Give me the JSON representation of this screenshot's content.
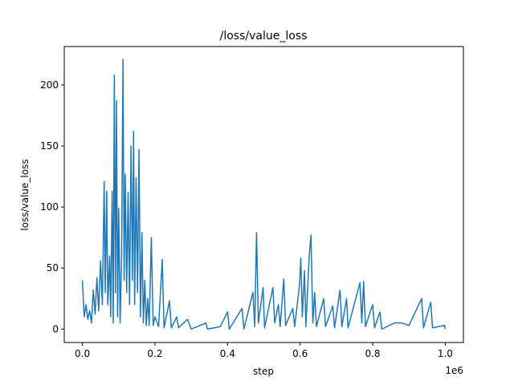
{
  "chart_data": {
    "type": "line",
    "title": "/loss/value_loss",
    "x_label": "step",
    "y_label": "loss/value_loss",
    "x_offset_label": "1e6",
    "xlim": [
      -50000,
      1050000
    ],
    "ylim": [
      -11,
      231.5
    ],
    "xticks": [
      {
        "value": 0,
        "label": "0.0"
      },
      {
        "value": 200000,
        "label": "0.2"
      },
      {
        "value": 400000,
        "label": "0.4"
      },
      {
        "value": 600000,
        "label": "0.6"
      },
      {
        "value": 800000,
        "label": "0.8"
      },
      {
        "value": 1000000,
        "label": "1.0"
      }
    ],
    "yticks": [
      0,
      50,
      100,
      150,
      200
    ],
    "x": [
      0,
      5000,
      10000,
      15000,
      20000,
      25000,
      30000,
      35000,
      40000,
      45000,
      50000,
      55000,
      60000,
      63000,
      67000,
      70000,
      75000,
      78000,
      82000,
      85000,
      88000,
      91000,
      94000,
      97000,
      100000,
      104000,
      108000,
      112000,
      115000,
      118000,
      122000,
      126000,
      130000,
      134000,
      138000,
      141000,
      144000,
      148000,
      152000,
      156000,
      160000,
      164000,
      168000,
      172000,
      176000,
      180000,
      184000,
      190000,
      195000,
      200000,
      210000,
      220000,
      225000,
      240000,
      245000,
      260000,
      265000,
      290000,
      300000,
      340000,
      345000,
      380000,
      400000,
      405000,
      440000,
      445000,
      470000,
      475000,
      480000,
      485000,
      498000,
      502000,
      525000,
      530000,
      540000,
      545000,
      555000,
      560000,
      580000,
      585000,
      598000,
      602000,
      606000,
      612000,
      616000,
      625000,
      630000,
      635000,
      640000,
      645000,
      665000,
      670000,
      690000,
      695000,
      710000,
      715000,
      728000,
      732000,
      765000,
      770000,
      775000,
      780000,
      800000,
      805000,
      820000,
      825000,
      860000,
      880000,
      900000,
      935000,
      940000,
      960000,
      965000,
      998000,
      1000000
    ],
    "series": [
      {
        "name": "value_loss",
        "color": "#1f77b4",
        "values": [
          40,
          10,
          20,
          8,
          15,
          5,
          32,
          12,
          42,
          15,
          56,
          20,
          121,
          30,
          113,
          20,
          60,
          10,
          113,
          5,
          208,
          30,
          187,
          10,
          99,
          5,
          60,
          221,
          40,
          127,
          30,
          112,
          20,
          150,
          40,
          162,
          20,
          124,
          30,
          147,
          10,
          79,
          5,
          40,
          3,
          25,
          3,
          75,
          3,
          10,
          2,
          57,
          1,
          23,
          1,
          10,
          1,
          8,
          0,
          5,
          0,
          2,
          14,
          0,
          17,
          0,
          30,
          2,
          79,
          5,
          34,
          1,
          34,
          5,
          20,
          2,
          41,
          3,
          17,
          2,
          35,
          58,
          10,
          48,
          2,
          60,
          77,
          5,
          30,
          2,
          25,
          2,
          19,
          1,
          32,
          2,
          25,
          1,
          38,
          5,
          39,
          2,
          20,
          1,
          14,
          0,
          5,
          5,
          3,
          25,
          1,
          22,
          1,
          3,
          0
        ]
      }
    ]
  }
}
